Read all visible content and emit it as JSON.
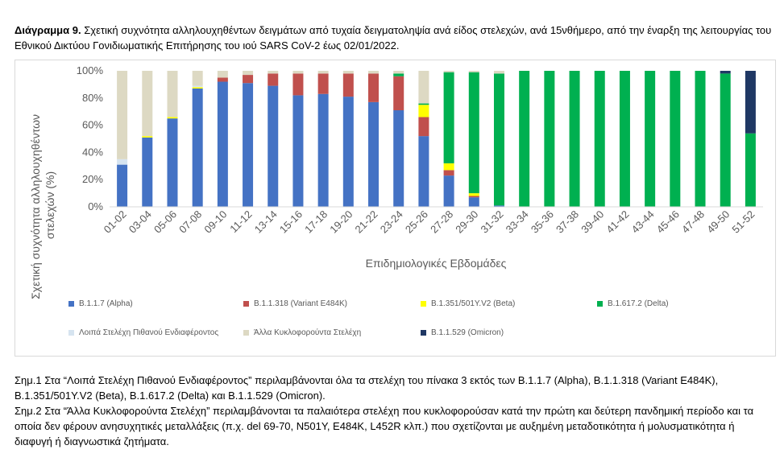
{
  "title": {
    "label": "Διάγραμμα 9.",
    "text": "Σχετική συχνότητα αλληλουχηθέντων δειγμάτων από τυχαία δειγματοληψία ανά είδος στελεχών, ανά 15νθήμερο, από την έναρξη της λειτουργίας του Εθνικού Δικτύου Γονιδιωματικής Επιτήρησης του ιού SARS CoV-2 έως 02/01/2022."
  },
  "chart_data": {
    "type": "bar",
    "stacked": true,
    "xlabel": "Επιδημιολογικές Εβδομάδες",
    "ylabel": "Σχετική συχνότητα αλληλουχηθέντων στελεχών (%)",
    "ylim": [
      0,
      100
    ],
    "yticks": [
      "0%",
      "20%",
      "40%",
      "60%",
      "80%",
      "100%"
    ],
    "grid": false,
    "legend_position": "bottom",
    "categories": [
      "01-02",
      "03-04",
      "05-06",
      "07-08",
      "09-10",
      "11-12",
      "13-14",
      "15-16",
      "17-18",
      "19-20",
      "21-22",
      "23-24",
      "25-26",
      "27-28",
      "29-30",
      "31-32",
      "33-34",
      "35-36",
      "37-38",
      "39-40",
      "41-42",
      "43-44",
      "45-46",
      "47-48",
      "49-50",
      "51-52"
    ],
    "series": [
      {
        "name": "B.1.1.7 (Alpha)",
        "color": "#4472c4",
        "values": [
          31,
          51,
          65,
          87,
          92,
          91,
          89,
          82,
          83,
          81,
          77,
          71,
          52,
          23,
          7,
          1,
          0,
          0,
          0,
          0,
          0,
          0,
          0,
          0,
          0,
          0
        ]
      },
      {
        "name": "B.1.1.318 (Variant E484K)",
        "color": "#c0504d",
        "values": [
          0,
          0,
          0,
          0,
          3,
          6,
          9,
          16,
          15,
          17,
          21,
          25,
          14,
          4,
          1,
          0,
          0,
          0,
          0,
          0,
          0,
          0,
          0,
          0,
          0,
          0
        ]
      },
      {
        "name": "B.1.351/501Y.V2 (Beta)",
        "color": "#ffff00",
        "values": [
          0,
          1,
          1,
          1,
          0,
          0,
          0,
          0,
          0,
          0,
          0,
          0,
          9,
          5,
          2,
          0,
          0,
          0,
          0,
          0,
          0,
          0,
          0,
          0,
          0,
          0
        ]
      },
      {
        "name": "B.1.617.2 (Delta)",
        "color": "#00b050",
        "values": [
          0,
          0,
          0,
          0,
          0,
          0,
          0,
          0,
          0,
          0,
          0,
          2,
          1,
          67,
          89,
          97,
          100,
          100,
          100,
          100,
          100,
          100,
          100,
          100,
          98,
          54
        ]
      },
      {
        "name": "Λοιπά Στελέχη Πιθανού Ενδιαφέροντος",
        "color": "#d6e4f0",
        "values": [
          4,
          0,
          0,
          1,
          0,
          0,
          0,
          0,
          0,
          0,
          0,
          0,
          0,
          0,
          0,
          0,
          0,
          0,
          0,
          0,
          0,
          0,
          0,
          0,
          0,
          0
        ]
      },
      {
        "name": "Άλλα Κυκλοφορούντα Στελέχη",
        "color": "#ddd9c3",
        "values": [
          65,
          48,
          34,
          11,
          5,
          3,
          2,
          2,
          2,
          2,
          2,
          2,
          24,
          1,
          1,
          2,
          0,
          0,
          0,
          0,
          0,
          0,
          0,
          0,
          0,
          0
        ]
      },
      {
        "name": "B.1.1.529 (Omicron)",
        "color": "#1f3864",
        "values": [
          0,
          0,
          0,
          0,
          0,
          0,
          0,
          0,
          0,
          0,
          0,
          0,
          0,
          0,
          0,
          0,
          0,
          0,
          0,
          0,
          0,
          0,
          0,
          0,
          2,
          46
        ]
      }
    ]
  },
  "notes": [
    "Σημ.1 Στα “Λοιπά Στελέχη Πιθανού Ενδιαφέροντος” περιλαμβάνονται όλα τα στελέχη του πίνακα 3 εκτός των B.1.1.7 (Alpha), B.1.1.318 (Variant E484K), B.1.351/501Y.V2 (Beta), B.1.617.2 (Delta) και B.1.1.529 (Omicron).",
    "Σημ.2 Στα “Άλλα Κυκλοφορούντα Στελέχη” περιλαμβάνονται τα παλαιότερα στελέχη που κυκλοφορούσαν κατά την πρώτη και δεύτερη πανδημική περίοδο και τα οποία δεν φέρουν ανησυχητικές μεταλλάξεις (π.χ. del 69-70, N501Y, E484K, L452R κλπ.) που σχετίζονται με αυξημένη μεταδοτικότητα ή μολυσματικότητα ή διαφυγή ή διαγνωστικά ζητήματα."
  ]
}
